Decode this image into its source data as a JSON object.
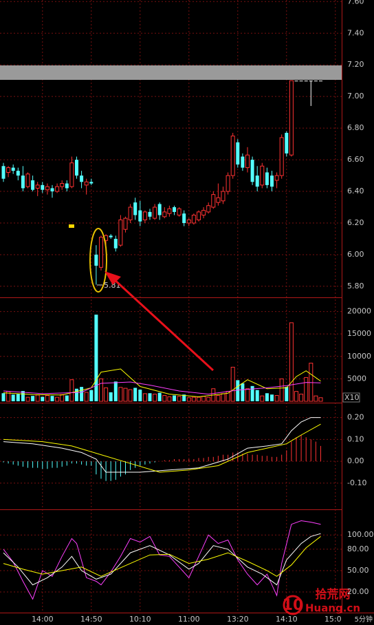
{
  "chart_data": [
    {
      "type": "candlestick",
      "period": "5分钟",
      "annotation": "5.81",
      "up_color": "#ff3232",
      "down_color": "#54ffff",
      "flat_color": "#ffffff",
      "categories": [
        null,
        null,
        null,
        null,
        null,
        null,
        null,
        null,
        "14:00",
        null,
        null,
        null,
        null,
        null,
        null,
        null,
        null,
        null,
        "14:50",
        null,
        null,
        null,
        null,
        null,
        null,
        null,
        null,
        null,
        "10:10",
        null,
        null,
        null,
        null,
        null,
        null,
        null,
        null,
        null,
        "11:00",
        null,
        null,
        null,
        null,
        null,
        null,
        null,
        null,
        null,
        "13:20",
        null,
        null,
        null,
        null,
        null,
        null,
        null,
        null,
        null,
        "14:10",
        null,
        null,
        null,
        null,
        null,
        null,
        null,
        null,
        null,
        "15:00"
      ],
      "open": [
        6.56,
        6.52,
        6.55,
        6.53,
        6.5,
        6.43,
        6.47,
        6.42,
        6.44,
        6.41,
        6.42,
        6.4,
        6.43,
        6.45,
        6.43,
        6.6,
        6.5,
        6.44,
        6.46,
        6.0,
        5.92,
        6.09,
        6.12,
        6.1,
        6.06,
        6.16,
        6.22,
        6.33,
        6.28,
        6.22,
        6.27,
        6.23,
        6.32,
        6.24,
        6.26,
        6.3,
        6.25,
        6.26,
        6.2,
        6.2,
        6.22,
        6.25,
        6.27,
        6.3,
        6.33,
        6.34,
        6.4,
        6.5,
        6.71,
        6.62,
        6.55,
        6.6,
        6.5,
        6.44,
        6.52,
        6.5,
        6.47,
        6.5,
        6.77,
        6.63,
        7.1,
        7.1,
        7.1,
        7.1,
        7.1,
        7.1,
        null,
        null,
        null
      ],
      "high": [
        6.58,
        6.56,
        6.57,
        6.55,
        6.56,
        6.52,
        6.5,
        6.46,
        6.46,
        6.45,
        6.44,
        6.45,
        6.47,
        6.47,
        6.62,
        6.62,
        6.53,
        6.48,
        6.48,
        6.06,
        6.12,
        6.13,
        6.13,
        6.12,
        6.25,
        6.24,
        6.32,
        6.36,
        6.34,
        6.28,
        6.29,
        6.32,
        6.33,
        6.3,
        6.31,
        6.31,
        6.3,
        6.28,
        6.23,
        6.26,
        6.28,
        6.3,
        6.33,
        6.4,
        6.45,
        6.43,
        6.52,
        6.77,
        6.73,
        6.64,
        6.68,
        6.62,
        6.56,
        6.58,
        6.55,
        6.53,
        6.52,
        6.76,
        6.78,
        7.1,
        7.1,
        7.1,
        7.1,
        7.1,
        7.1,
        7.1,
        null,
        null,
        null
      ],
      "low": [
        6.46,
        6.49,
        6.51,
        6.47,
        6.4,
        6.42,
        6.4,
        6.37,
        6.39,
        6.38,
        6.36,
        6.39,
        6.41,
        6.4,
        6.42,
        6.48,
        6.42,
        6.38,
        6.44,
        5.81,
        5.9,
        6.06,
        6.1,
        6.02,
        6.05,
        6.14,
        6.2,
        6.22,
        6.18,
        6.2,
        6.22,
        6.22,
        6.22,
        6.23,
        6.24,
        6.25,
        6.24,
        6.18,
        6.18,
        6.19,
        6.21,
        6.23,
        6.26,
        6.29,
        6.31,
        6.32,
        6.38,
        6.48,
        6.55,
        6.53,
        6.52,
        6.44,
        6.4,
        6.42,
        6.42,
        6.4,
        6.42,
        6.48,
        6.62,
        6.62,
        7.1,
        7.1,
        7.1,
        6.94,
        7.1,
        7.1,
        null,
        null,
        null
      ],
      "close": [
        6.48,
        6.55,
        6.53,
        6.5,
        6.42,
        6.51,
        6.41,
        6.44,
        6.41,
        6.43,
        6.4,
        6.43,
        6.45,
        6.42,
        6.58,
        6.5,
        6.46,
        6.46,
        6.45,
        5.93,
        6.11,
        6.12,
        6.11,
        6.04,
        6.22,
        6.23,
        6.3,
        6.25,
        6.21,
        6.27,
        6.24,
        6.3,
        6.25,
        6.27,
        6.29,
        6.27,
        6.29,
        6.2,
        6.22,
        6.25,
        6.27,
        6.28,
        6.31,
        6.38,
        6.36,
        6.4,
        6.5,
        6.75,
        6.57,
        6.55,
        6.63,
        6.46,
        6.43,
        6.56,
        6.44,
        6.43,
        6.5,
        6.74,
        6.64,
        7.1,
        7.1,
        7.1,
        7.1,
        7.1,
        7.1,
        7.1,
        null,
        null,
        null
      ],
      "ylim": [
        5.73,
        7.61
      ],
      "yticks": [
        {
          "value": 7.6,
          "label": "7.60"
        },
        {
          "value": 7.4,
          "label": "7.40"
        },
        {
          "value": 7.2,
          "label": "7.20"
        },
        {
          "value": 7,
          "label": "7.00"
        },
        {
          "value": 6.8,
          "label": "6.80"
        },
        {
          "value": 6.6,
          "label": "6.60"
        },
        {
          "value": 6.4,
          "label": "6.40"
        },
        {
          "value": 6.2,
          "label": "6.20"
        },
        {
          "value": 6,
          "label": "6.00"
        },
        {
          "value": 5.8,
          "label": "5.80"
        }
      ],
      "grid": true
    },
    {
      "type": "volume",
      "unit_label": "X10",
      "values": [
        1800,
        2200,
        1500,
        1600,
        2300,
        900,
        1200,
        1400,
        1000,
        1300,
        1200,
        900,
        1500,
        1300,
        4800,
        2800,
        3200,
        2000,
        2500,
        19300,
        5000,
        3000,
        2000,
        4400,
        3100,
        2900,
        2600,
        3000,
        2600,
        1700,
        1800,
        1600,
        1900,
        1300,
        1000,
        1300,
        1100,
        1500,
        800,
        900,
        900,
        1100,
        900,
        2800,
        1300,
        1700,
        2200,
        7600,
        4700,
        4000,
        2800,
        3400,
        2500,
        1200,
        1800,
        1500,
        1300,
        5000,
        3200,
        17500,
        2200,
        1600,
        5300,
        8500,
        1200,
        800,
        null,
        null,
        null
      ],
      "series": [
        {
          "color": "#ffff00",
          "x": [
            0,
            6,
            12,
            18,
            20,
            24,
            28,
            34,
            40,
            46,
            50,
            54,
            58,
            60,
            62,
            65
          ],
          "values": [
            1900,
            1500,
            1400,
            3000,
            6500,
            7200,
            3300,
            1600,
            1000,
            1800,
            4800,
            2800,
            3000,
            5500,
            6800,
            4500
          ]
        },
        {
          "color": "#ff40ff",
          "x": [
            0,
            8,
            16,
            20,
            26,
            30,
            36,
            42,
            48,
            54,
            58,
            62,
            65
          ],
          "values": [
            2300,
            1700,
            2000,
            4000,
            4300,
            3600,
            2300,
            1600,
            2500,
            3000,
            3500,
            4200,
            4100
          ]
        }
      ],
      "ylim": [
        0,
        23000
      ],
      "yticks": [
        5000,
        10000,
        15000,
        20000
      ],
      "grid": true
    },
    {
      "type": "macd",
      "values": [
        -0.005,
        -0.01,
        -0.015,
        -0.02,
        -0.025,
        -0.03,
        -0.03,
        -0.03,
        -0.035,
        -0.035,
        -0.03,
        -0.03,
        -0.025,
        -0.02,
        -0.01,
        -0.01,
        -0.015,
        -0.02,
        -0.02,
        -0.06,
        -0.08,
        -0.09,
        -0.09,
        -0.085,
        -0.07,
        -0.06,
        -0.04,
        -0.03,
        -0.02,
        -0.015,
        -0.01,
        -0.005,
        0,
        0.005,
        0.005,
        0.01,
        0.01,
        0.01,
        0.01,
        0.01,
        0.015,
        0.015,
        0.02,
        0.02,
        0.025,
        0.03,
        0.03,
        0.04,
        0.04,
        0.035,
        0.035,
        0.03,
        0.03,
        0.025,
        0.025,
        0.02,
        0.02,
        0.03,
        0.05,
        0.09,
        0.11,
        0.12,
        0.11,
        0.1,
        0.09,
        0.07,
        null,
        null,
        null
      ],
      "series": [
        {
          "color": "#ffffff",
          "x": [
            0,
            6,
            12,
            16,
            19,
            21,
            24,
            28,
            34,
            40,
            46,
            50,
            54,
            57,
            59,
            61,
            63,
            65
          ],
          "values": [
            0.09,
            0.08,
            0.06,
            0.04,
            0.01,
            -0.05,
            -0.05,
            -0.05,
            -0.04,
            -0.03,
            0.01,
            0.06,
            0.07,
            0.08,
            0.14,
            0.18,
            0.2,
            0.2
          ]
        },
        {
          "color": "#ffff00",
          "x": [
            0,
            8,
            14,
            20,
            26,
            32,
            38,
            44,
            50,
            54,
            58,
            61,
            65
          ],
          "values": [
            0.1,
            0.09,
            0.07,
            0.03,
            -0.01,
            -0.05,
            -0.04,
            -0.02,
            0.04,
            0.06,
            0.08,
            0.12,
            0.17
          ]
        }
      ],
      "ylim": [
        -0.22,
        0.265
      ],
      "yticks": [
        {
          "value": 0.2,
          "label": "0.20"
        },
        {
          "value": 0.1,
          "label": "0.10"
        },
        {
          "value": 0,
          "label": "0.00"
        },
        {
          "value": -0.1,
          "label": "-0.10"
        }
      ],
      "grid": true
    },
    {
      "type": "line",
      "series": [
        {
          "color": "#ff40ff",
          "x": [
            0,
            2,
            4,
            6,
            8,
            10,
            12,
            14,
            15,
            17,
            19,
            20,
            22,
            24,
            26,
            28,
            30,
            32,
            34,
            36,
            38,
            40,
            42,
            44,
            46,
            48,
            50,
            52,
            54,
            56,
            57,
            59,
            61,
            63,
            65
          ],
          "values": [
            80,
            62,
            35,
            10,
            50,
            42,
            70,
            95,
            88,
            40,
            35,
            30,
            48,
            70,
            95,
            90,
            98,
            72,
            70,
            55,
            40,
            70,
            100,
            88,
            93,
            65,
            45,
            30,
            45,
            15,
            60,
            115,
            120,
            118,
            115
          ]
        },
        {
          "color": "#ffffff",
          "x": [
            0,
            3,
            6,
            9,
            12,
            14,
            16,
            19,
            22,
            26,
            30,
            34,
            38,
            40,
            43,
            46,
            50,
            53,
            56,
            58,
            61,
            63,
            65
          ],
          "values": [
            75,
            55,
            30,
            40,
            55,
            70,
            50,
            38,
            45,
            75,
            85,
            72,
            52,
            60,
            85,
            80,
            55,
            45,
            30,
            65,
            88,
            98,
            102
          ]
        },
        {
          "color": "#ffff00",
          "x": [
            0,
            4,
            8,
            12,
            16,
            20,
            26,
            30,
            34,
            38,
            42,
            46,
            50,
            54,
            56,
            59,
            62,
            65
          ],
          "values": [
            60,
            52,
            45,
            50,
            55,
            42,
            60,
            72,
            73,
            60,
            66,
            75,
            63,
            50,
            42,
            58,
            82,
            98
          ]
        }
      ],
      "ylim": [
        -8,
        135
      ],
      "yticks": [
        {
          "value": 100,
          "label": "100.00"
        },
        {
          "value": 80,
          "label": "80.00"
        },
        {
          "value": 50,
          "label": "50.00"
        },
        {
          "value": 20,
          "label": "20.00"
        }
      ],
      "grid": true
    }
  ],
  "watermark": {
    "number": "10",
    "name": "拾荒网",
    "site": "Huang.cn"
  }
}
